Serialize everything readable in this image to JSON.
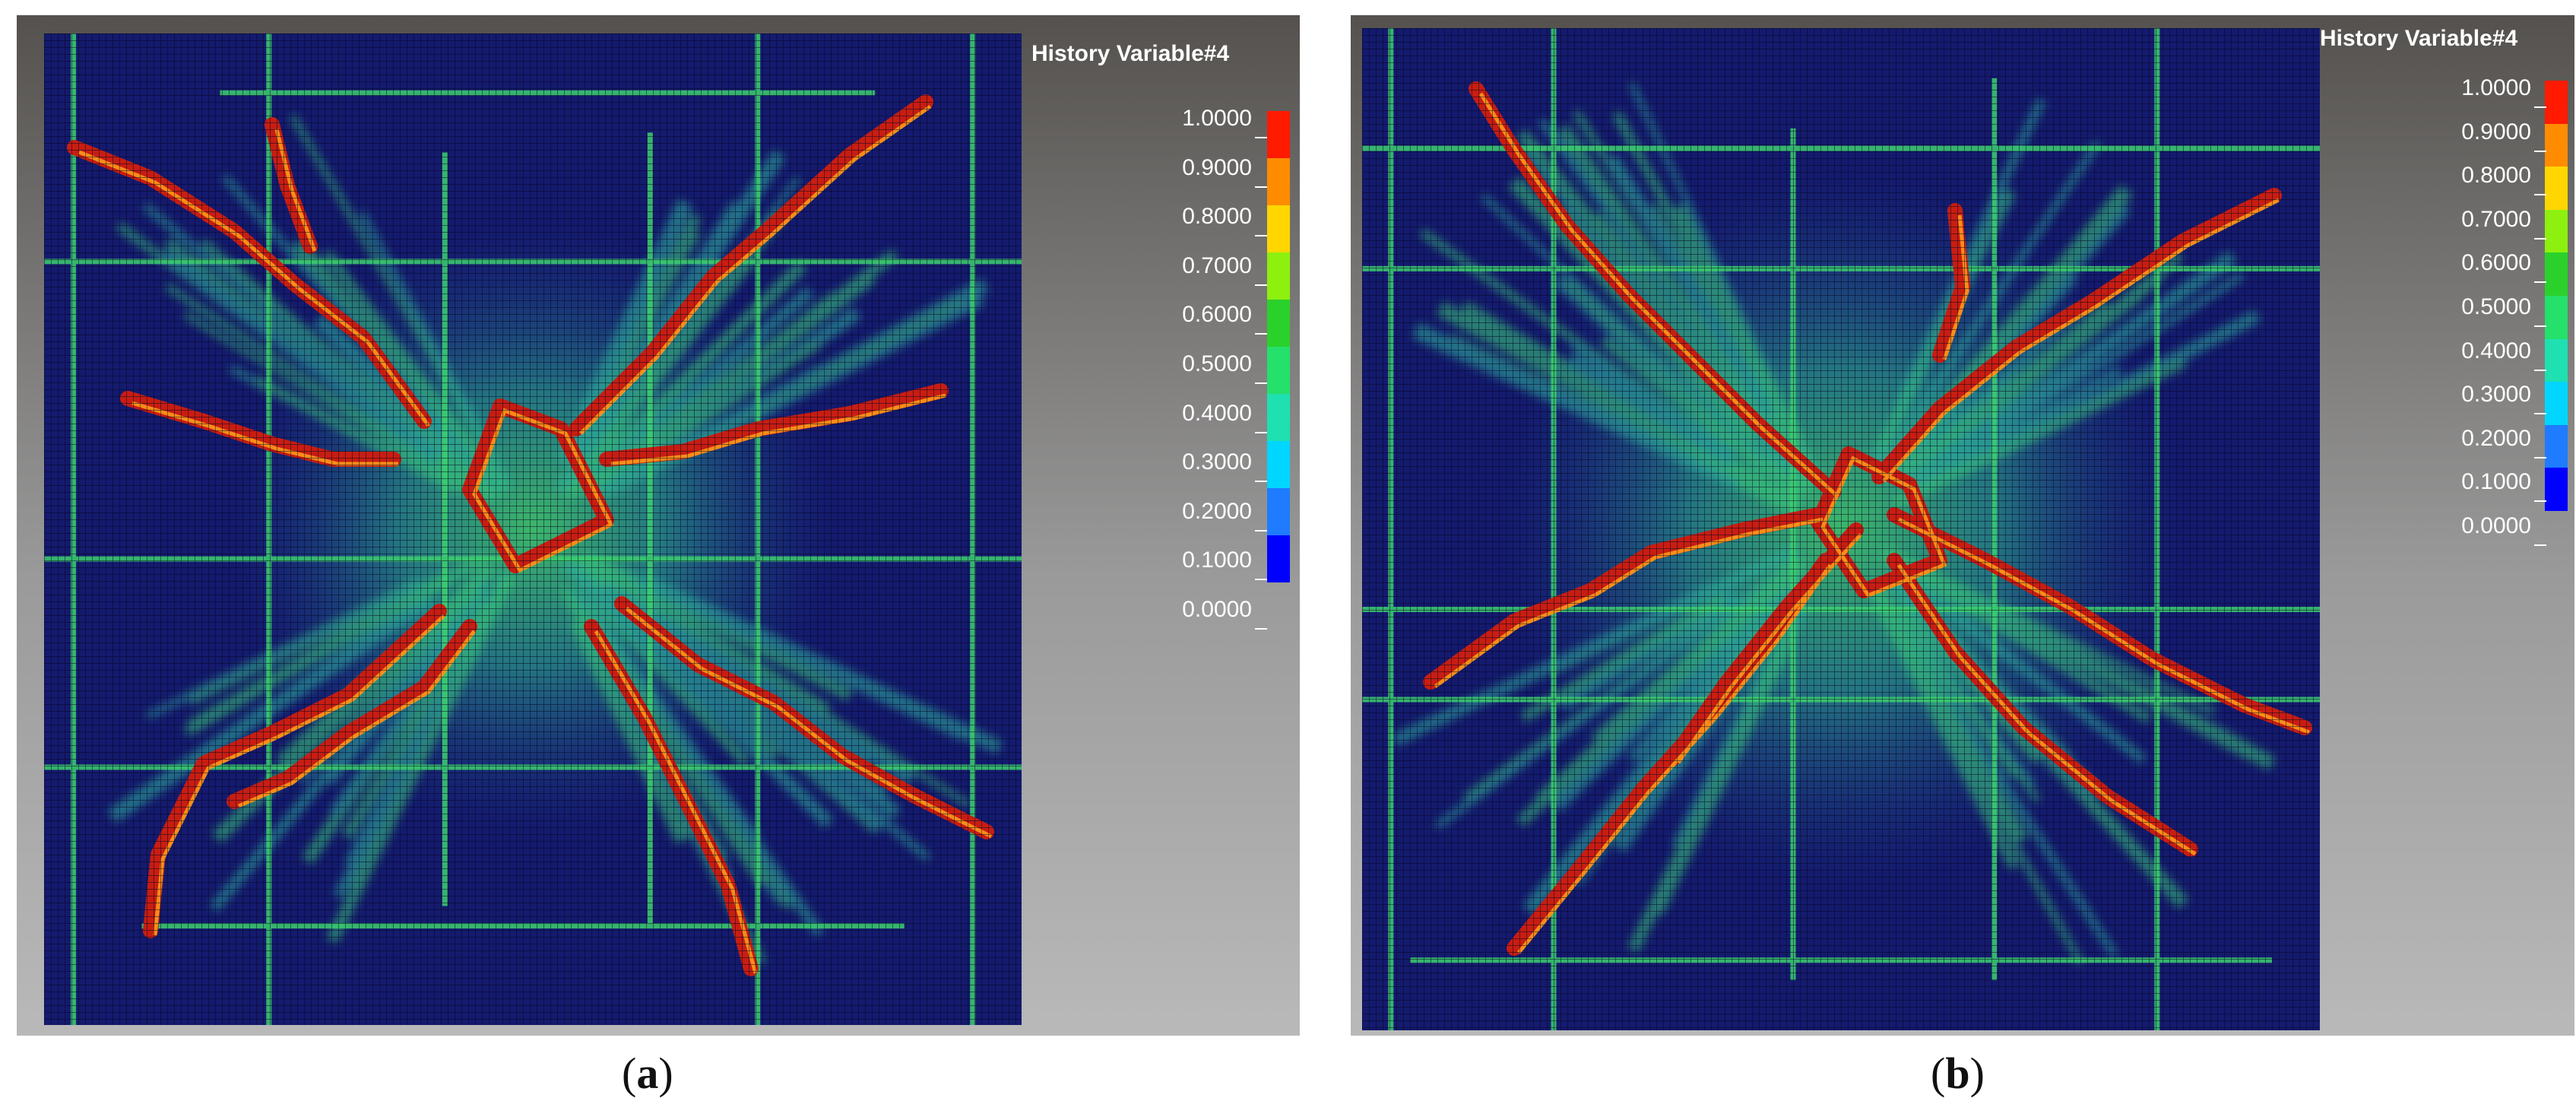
{
  "figure": {
    "panels": [
      {
        "id": "a",
        "caption_open": "(",
        "caption_letter": "a",
        "caption_close": ")",
        "legend_title": "History Variable#4",
        "legend_ticks": [
          "1.0000",
          "0.9000",
          "0.8000",
          "0.7000",
          "0.6000",
          "0.5000",
          "0.4000",
          "0.3000",
          "0.2000",
          "0.1000",
          "0.0000"
        ],
        "pattern": "square-ring-with-diagonal-cracks"
      },
      {
        "id": "b",
        "caption_open": "(",
        "caption_letter": "b",
        "caption_close": ")",
        "legend_title": "History Variable#4",
        "legend_ticks": [
          "1.0000",
          "0.9000",
          "0.8000",
          "0.7000",
          "0.6000",
          "0.5000",
          "0.4000",
          "0.3000",
          "0.2000",
          "0.1000",
          "0.0000"
        ],
        "pattern": "x-shaped-diagonal-cracks"
      }
    ],
    "colors": {
      "background_mesh": "#141a6e",
      "mesh_line": "#05061e",
      "scale": [
        "#0000ff",
        "#1f7bff",
        "#00d6ff",
        "#1fe0b0",
        "#25e06a",
        "#2bd12b",
        "#8df00f",
        "#ffd600",
        "#ff8c00",
        "#ff1a00"
      ]
    }
  }
}
